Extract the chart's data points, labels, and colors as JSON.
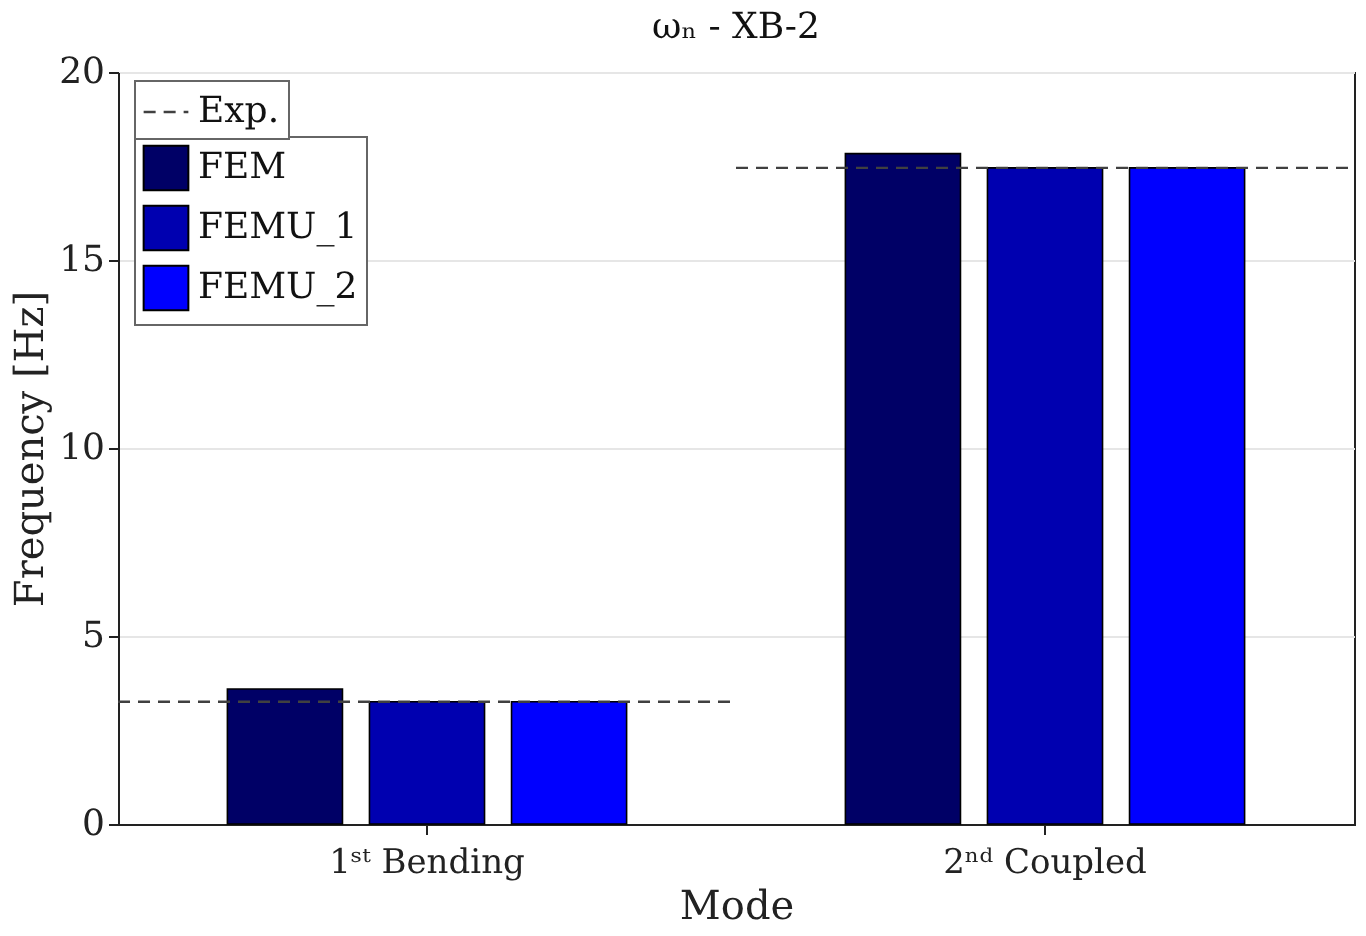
{
  "chart_data": {
    "type": "bar",
    "title": "ωₙ - XB-2",
    "xlabel": "Mode",
    "ylabel": "Frequency [Hz]",
    "categories": [
      "1ˢᵗ Bending",
      "2ⁿᵈ Coupled"
    ],
    "series": [
      {
        "name": "FEM",
        "color": "#000066",
        "values": [
          3.59,
          17.83
        ]
      },
      {
        "name": "FEMU_1",
        "color": "#0000b0",
        "values": [
          3.25,
          17.45
        ]
      },
      {
        "name": "FEMU_2",
        "color": "#0000ff",
        "values": [
          3.25,
          17.45
        ]
      }
    ],
    "ref_lines": [
      {
        "axis": "y",
        "value": 3.25,
        "label": "Exp.",
        "color": "#404040",
        "line_style": "dashed"
      },
      {
        "axis": "y",
        "value": 17.45,
        "color": "#404040",
        "line_style": "dashed"
      }
    ],
    "ylim": [
      0,
      20
    ],
    "yticks": [
      0,
      5,
      10,
      15,
      20
    ],
    "grid": "y",
    "legend": "top left"
  }
}
